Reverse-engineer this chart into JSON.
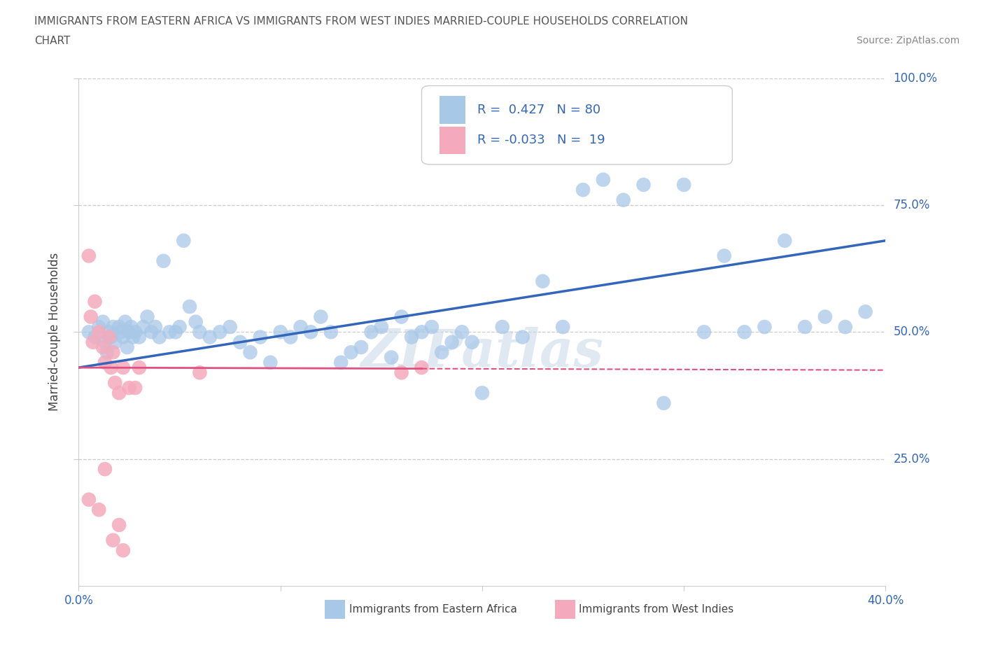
{
  "title_line1": "IMMIGRANTS FROM EASTERN AFRICA VS IMMIGRANTS FROM WEST INDIES MARRIED-COUPLE HOUSEHOLDS CORRELATION",
  "title_line2": "CHART",
  "source": "Source: ZipAtlas.com",
  "ylabel": "Married-couple Households",
  "xlim": [
    0.0,
    0.4
  ],
  "ylim": [
    0.0,
    1.0
  ],
  "yticks": [
    0.25,
    0.5,
    0.75,
    1.0
  ],
  "ytick_labels": [
    "25.0%",
    "50.0%",
    "75.0%",
    "100.0%"
  ],
  "blue_color": "#A8C8E8",
  "pink_color": "#F4AABC",
  "blue_line_color": "#3366BB",
  "pink_line_color": "#E05080",
  "watermark": "ZIPatlas",
  "eastern_africa_x": [
    0.005,
    0.008,
    0.01,
    0.012,
    0.013,
    0.014,
    0.015,
    0.016,
    0.017,
    0.018,
    0.02,
    0.021,
    0.022,
    0.023,
    0.024,
    0.025,
    0.026,
    0.027,
    0.028,
    0.03,
    0.032,
    0.034,
    0.036,
    0.038,
    0.04,
    0.042,
    0.045,
    0.048,
    0.05,
    0.052,
    0.055,
    0.058,
    0.06,
    0.065,
    0.07,
    0.075,
    0.08,
    0.085,
    0.09,
    0.095,
    0.1,
    0.105,
    0.11,
    0.115,
    0.12,
    0.125,
    0.13,
    0.135,
    0.14,
    0.145,
    0.15,
    0.155,
    0.16,
    0.165,
    0.17,
    0.175,
    0.18,
    0.185,
    0.19,
    0.195,
    0.2,
    0.21,
    0.22,
    0.23,
    0.24,
    0.25,
    0.26,
    0.27,
    0.28,
    0.29,
    0.3,
    0.31,
    0.32,
    0.33,
    0.34,
    0.35,
    0.36,
    0.37,
    0.38,
    0.39
  ],
  "eastern_africa_y": [
    0.5,
    0.49,
    0.51,
    0.52,
    0.48,
    0.46,
    0.5,
    0.49,
    0.51,
    0.48,
    0.51,
    0.5,
    0.49,
    0.52,
    0.47,
    0.5,
    0.51,
    0.49,
    0.5,
    0.49,
    0.51,
    0.53,
    0.5,
    0.51,
    0.49,
    0.64,
    0.5,
    0.5,
    0.51,
    0.68,
    0.55,
    0.52,
    0.5,
    0.49,
    0.5,
    0.51,
    0.48,
    0.46,
    0.49,
    0.44,
    0.5,
    0.49,
    0.51,
    0.5,
    0.53,
    0.5,
    0.44,
    0.46,
    0.47,
    0.5,
    0.51,
    0.45,
    0.53,
    0.49,
    0.5,
    0.51,
    0.46,
    0.48,
    0.5,
    0.48,
    0.38,
    0.51,
    0.49,
    0.6,
    0.51,
    0.78,
    0.8,
    0.76,
    0.79,
    0.36,
    0.79,
    0.5,
    0.65,
    0.5,
    0.51,
    0.68,
    0.51,
    0.53,
    0.51,
    0.54
  ],
  "west_indies_x": [
    0.005,
    0.006,
    0.007,
    0.008,
    0.01,
    0.012,
    0.013,
    0.015,
    0.016,
    0.017,
    0.018,
    0.02,
    0.022,
    0.025,
    0.028,
    0.03,
    0.06,
    0.16,
    0.17
  ],
  "west_indies_y": [
    0.65,
    0.53,
    0.48,
    0.56,
    0.5,
    0.47,
    0.44,
    0.49,
    0.43,
    0.46,
    0.4,
    0.38,
    0.43,
    0.39,
    0.39,
    0.43,
    0.42,
    0.42,
    0.43
  ],
  "west_indies_low_x": [
    0.005,
    0.01,
    0.013,
    0.017,
    0.02,
    0.022
  ],
  "west_indies_low_y": [
    0.17,
    0.15,
    0.23,
    0.09,
    0.12,
    0.07
  ]
}
